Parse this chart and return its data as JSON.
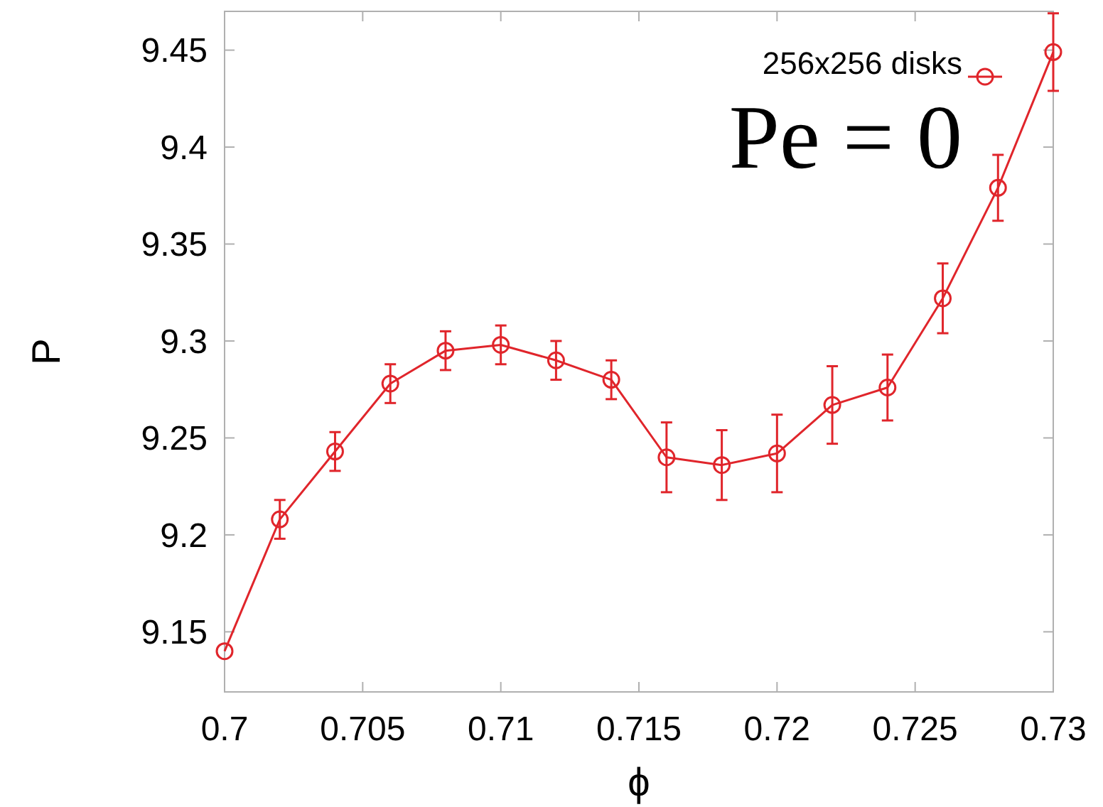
{
  "chart_data": {
    "type": "line",
    "xlabel": "ϕ",
    "ylabel": "P",
    "xlim": [
      0.7,
      0.73
    ],
    "ylim": [
      9.119,
      9.47
    ],
    "xticks": [
      0.7,
      0.705,
      0.71,
      0.715,
      0.72,
      0.725,
      0.73
    ],
    "yticks": [
      9.15,
      9.2,
      9.25,
      9.3,
      9.35,
      9.4,
      9.45
    ],
    "x": [
      0.7,
      0.702,
      0.704,
      0.706,
      0.708,
      0.71,
      0.712,
      0.714,
      0.716,
      0.718,
      0.72,
      0.722,
      0.724,
      0.726,
      0.728,
      0.73
    ],
    "series": [
      {
        "name": "256x256 disks",
        "color": "#e0252b",
        "values": [
          9.14,
          9.208,
          9.243,
          9.278,
          9.295,
          9.298,
          9.29,
          9.28,
          9.24,
          9.236,
          9.242,
          9.267,
          9.276,
          9.322,
          9.379,
          9.449
        ],
        "errors": [
          null,
          0.01,
          0.01,
          0.01,
          0.01,
          0.01,
          0.01,
          0.01,
          0.018,
          0.018,
          0.02,
          0.02,
          0.017,
          0.018,
          0.017,
          0.02
        ]
      }
    ],
    "annotations": [
      "Pe = 0"
    ],
    "marker": "circle",
    "grid": false,
    "legend": "top right"
  }
}
